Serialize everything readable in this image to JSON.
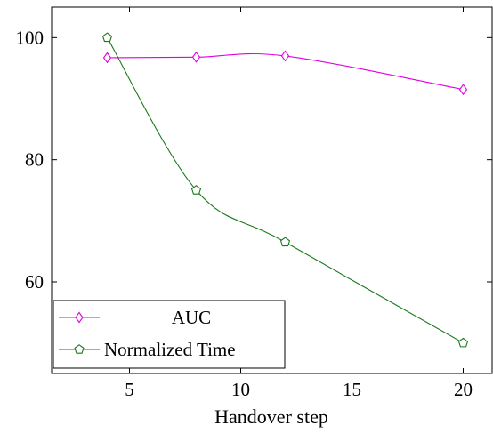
{
  "chart_data": {
    "type": "line",
    "title": "",
    "xlabel": "Handover step",
    "ylabel": "",
    "xlim": [
      1.5,
      21.3
    ],
    "ylim": [
      45,
      105
    ],
    "xticks": [
      5,
      10,
      15,
      20
    ],
    "yticks": [
      60,
      80,
      100
    ],
    "grid": false,
    "legend_position": "bottom-left",
    "series": [
      {
        "name": "AUC",
        "color": "#e000e0",
        "marker": "diamond",
        "x": [
          4,
          8,
          12,
          20
        ],
        "y": [
          96.7,
          96.8,
          97.0,
          91.5
        ]
      },
      {
        "name": "Normalized Time",
        "color": "#1a7a1a",
        "marker": "pentagon",
        "x": [
          4,
          8,
          12,
          20
        ],
        "y": [
          100,
          75,
          66.5,
          50
        ]
      }
    ]
  }
}
